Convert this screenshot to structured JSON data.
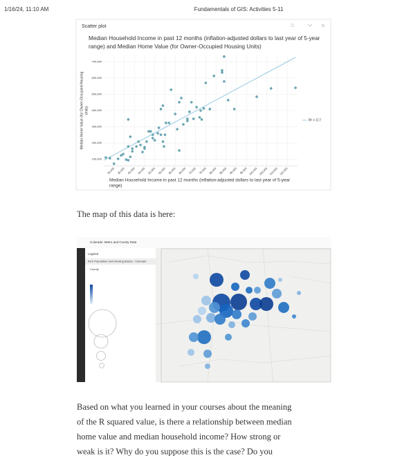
{
  "header": {
    "date": "1/16/24, 11:10 AM",
    "title": "Fundamentals of GIS: Activities 5-11"
  },
  "chart_data": {
    "type": "scatter",
    "panel_title": "Scatter plot",
    "title": [
      "Median Household Income in past 12 months (inflation-adjusted dollars to last year of 5-year",
      "range) and Median Home Value (for Owner-Occupied Housing Units)"
    ],
    "y_label": [
      "Median Home Value (for Owner-Occupied Housing",
      "Units)"
    ],
    "x_label": [
      "Median Household Income in past 12 months (inflation-adjusted dollars to last year of 5-year",
      "range)"
    ],
    "color": "#6aaab8",
    "trend_color": "#8cc5e0",
    "r2_label": "R² = 0.7",
    "xlim": [
      25000,
      120000
    ],
    "ylim": [
      60000,
      740000
    ],
    "xticks": [
      {
        "value": 30000,
        "label": "30,000"
      },
      {
        "value": 35000,
        "label": "35,000"
      },
      {
        "value": 40000,
        "label": "40,000"
      },
      {
        "value": 45000,
        "label": "45,000"
      },
      {
        "value": 50000,
        "label": "50,000"
      },
      {
        "value": 55000,
        "label": "55,000"
      },
      {
        "value": 60000,
        "label": "60,000"
      },
      {
        "value": 65000,
        "label": "65,000"
      },
      {
        "value": 70000,
        "label": "70,000"
      },
      {
        "value": 75000,
        "label": "75,000"
      },
      {
        "value": 80000,
        "label": "80,000"
      },
      {
        "value": 85000,
        "label": "85,000"
      },
      {
        "value": 90000,
        "label": "90,000"
      },
      {
        "value": 95000,
        "label": "95,000"
      },
      {
        "value": 100000,
        "label": "100,000"
      },
      {
        "value": 105000,
        "label": "105,000"
      },
      {
        "value": 110000,
        "label": "110,000"
      },
      {
        "value": 115000,
        "label": "115,000"
      }
    ],
    "yticks": [
      {
        "value": 100000,
        "label": "100,000"
      },
      {
        "value": 200000,
        "label": "200,000"
      },
      {
        "value": 300000,
        "label": "300,000"
      },
      {
        "value": 400000,
        "label": "400,000"
      },
      {
        "value": 500000,
        "label": "500,000"
      },
      {
        "value": 600000,
        "label": "600,000"
      },
      {
        "value": 700000,
        "label": "700,000"
      }
    ],
    "grid": true,
    "x": [
      26000,
      28000,
      30000,
      32000,
      33500,
      34500,
      36000,
      37000,
      37000,
      38000,
      38000,
      39000,
      39000,
      41000,
      42000,
      43000,
      44000,
      45000,
      45000,
      46000,
      47000,
      48000,
      49000,
      49000,
      50000,
      51500,
      52000,
      53000,
      54000,
      54500,
      55000,
      53000,
      54000,
      55500,
      57000,
      58000,
      60000,
      61000,
      62000,
      62000,
      63000,
      64000,
      66000,
      66000,
      67000,
      68000,
      69000,
      70500,
      72000,
      72500,
      73000,
      74000,
      75000,
      77000,
      79000,
      83000,
      83000,
      84000,
      84000,
      86000,
      89000,
      100000,
      107000,
      119000,
      37000
    ],
    "y": [
      111000,
      107000,
      73000,
      103000,
      124000,
      132000,
      98000,
      94000,
      179000,
      115000,
      239000,
      149000,
      166000,
      179000,
      209000,
      188000,
      145000,
      175000,
      166000,
      209000,
      272000,
      272000,
      230000,
      251000,
      217000,
      260000,
      294000,
      251000,
      209000,
      179000,
      251000,
      409000,
      430000,
      324000,
      324000,
      528000,
      379000,
      285000,
      154000,
      451000,
      477000,
      315000,
      349000,
      336000,
      392000,
      451000,
      349000,
      421000,
      358000,
      400000,
      345000,
      413000,
      570000,
      409000,
      613000,
      634000,
      647000,
      579000,
      732000,
      464000,
      409000,
      485000,
      536000,
      540000,
      345000
    ],
    "trendline": {
      "x": [
        25000,
        119000
      ],
      "y": [
        94000,
        727000
      ]
    }
  },
  "map_intro": "The map of this data is here:",
  "map": {
    "app_title": "Colorado: Metro and County Data",
    "legend_title": "Legend",
    "layer": "ACS Population and Housing Basics - Colorado",
    "group": "County"
  },
  "question": [
    "Based on what you learned in your courses about the meaning",
    "of the R squared value, is there a relationship between median",
    "home value and median household income?  How strong or",
    "weak is it?  Why do you suppose this is the case?  Do you"
  ]
}
